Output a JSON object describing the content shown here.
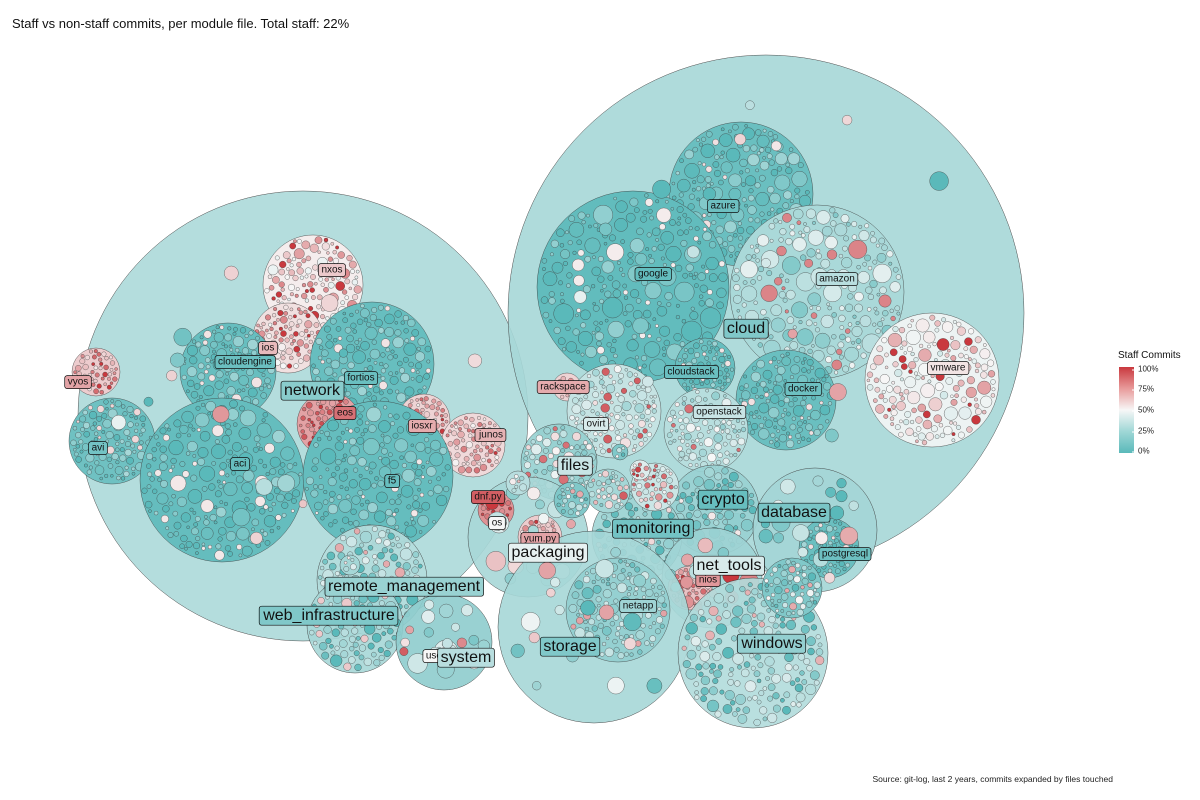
{
  "title": "Staff vs non-staff commits, per module file. Total staff: 22%",
  "caption": "Source: git-log, last 2 years, commits expanded by files touched",
  "legend": {
    "title": "Staff Commits",
    "ticks": [
      "100%",
      "75%",
      "50%",
      "25%",
      "0%"
    ],
    "tick_values": [
      1.0,
      0.75,
      0.5,
      0.25,
      0.0
    ]
  },
  "colors": {
    "low": "#5ab9ba",
    "mid": "#f7f7f7",
    "high": "#c9383e",
    "outline": "#3a3a3a"
  },
  "chart_data": {
    "type": "circle-packing",
    "value": "staff commit share per module file",
    "color_scale": [
      0,
      1
    ],
    "groups": [
      {
        "name": "network",
        "staff": 0.15,
        "subgroups": [
          {
            "name": "nxos",
            "staff": 0.62
          },
          {
            "name": "ios",
            "staff": 0.66
          },
          {
            "name": "cloudengine",
            "staff": 0.05
          },
          {
            "name": "fortios",
            "staff": 0.05
          },
          {
            "name": "vyos",
            "staff": 0.72
          },
          {
            "name": "eos",
            "staff": 0.85
          },
          {
            "name": "iosxr",
            "staff": 0.7
          },
          {
            "name": "junos",
            "staff": 0.68
          },
          {
            "name": "avi",
            "staff": 0.08
          },
          {
            "name": "aci",
            "staff": 0.04
          },
          {
            "name": "f5",
            "staff": 0.04
          }
        ]
      },
      {
        "name": "cloud",
        "staff": 0.12,
        "subgroups": [
          {
            "name": "azure",
            "staff": 0.06
          },
          {
            "name": "google",
            "staff": 0.03
          },
          {
            "name": "amazon",
            "staff": 0.3
          },
          {
            "name": "vmware",
            "staff": 0.55
          },
          {
            "name": "cloudstack",
            "staff": 0.05
          },
          {
            "name": "docker",
            "staff": 0.06
          },
          {
            "name": "openstack",
            "staff": 0.35
          },
          {
            "name": "rackspace",
            "staff": 0.7
          },
          {
            "name": "ovirt",
            "staff": 0.4
          }
        ]
      },
      {
        "name": "files",
        "staff": 0.35,
        "subgroups": []
      },
      {
        "name": "packaging",
        "staff": 0.45,
        "subgroups": [
          {
            "name": "dnf.py",
            "staff": 0.9
          },
          {
            "name": "os",
            "staff": 0.5
          },
          {
            "name": "yum.py",
            "staff": 0.72
          }
        ]
      },
      {
        "name": "crypto",
        "staff": 0.04,
        "subgroups": []
      },
      {
        "name": "monitoring",
        "staff": 0.08,
        "subgroups": []
      },
      {
        "name": "database",
        "staff": 0.1,
        "subgroups": [
          {
            "name": "postgresql",
            "staff": 0.06
          }
        ]
      },
      {
        "name": "net_tools",
        "staff": 0.4,
        "subgroups": [
          {
            "name": "nios",
            "staff": 0.75
          }
        ]
      },
      {
        "name": "remote_management",
        "staff": 0.2,
        "subgroups": []
      },
      {
        "name": "web_infrastructure",
        "staff": 0.12,
        "subgroups": []
      },
      {
        "name": "system",
        "staff": 0.3,
        "subgroups": [
          {
            "name": "user.py",
            "staff": 0.5
          }
        ]
      },
      {
        "name": "storage",
        "staff": 0.12,
        "subgroups": [
          {
            "name": "netapp",
            "staff": 0.22
          }
        ]
      },
      {
        "name": "windows",
        "staff": 0.18,
        "subgroups": []
      }
    ]
  }
}
